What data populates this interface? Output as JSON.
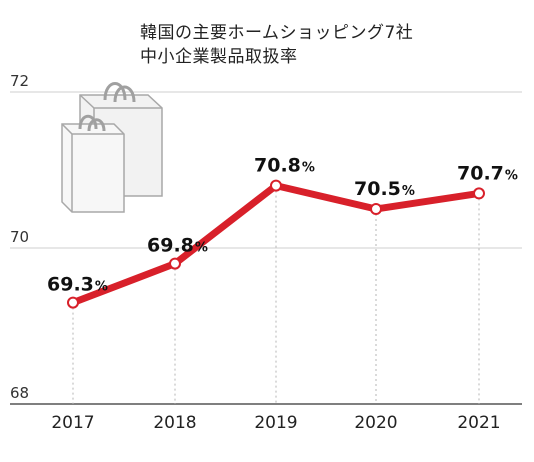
{
  "title_lines": [
    "韓国の主要ホームショッピング7社",
    "中小企業製品取扱率"
  ],
  "icon": "shopping-bags-icon",
  "colors": {
    "line": "#d8202a",
    "grid": "#cfcfcf",
    "vline": "#b5b5b5",
    "text": "#222222"
  },
  "chart_data": {
    "type": "line",
    "title": "韓国の主要ホームショッピング7社 中小企業製品取扱率",
    "categories": [
      "2017",
      "2018",
      "2019",
      "2020",
      "2021"
    ],
    "values": [
      69.3,
      69.8,
      70.8,
      70.5,
      70.7
    ],
    "data_labels": [
      "69.3",
      "69.8",
      "70.8",
      "70.5",
      "70.7"
    ],
    "unit": "%",
    "yticks": [
      "68",
      "70",
      "72"
    ],
    "ylim": [
      68,
      72
    ],
    "grid": true,
    "legend": "none"
  }
}
